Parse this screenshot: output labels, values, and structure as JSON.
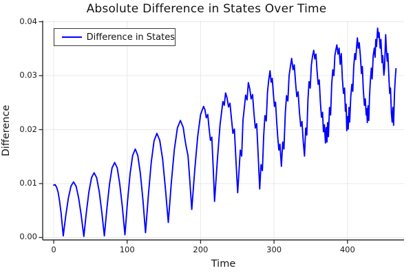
{
  "chart_data": {
    "type": "line",
    "title": "Absolute Difference in States Over Time",
    "xlabel": "Time",
    "ylabel": "Difference",
    "xlim": [
      -15,
      477
    ],
    "ylim": [
      -0.00045,
      0.0402
    ],
    "grid": true,
    "legend_position": "top-left",
    "xticks": {
      "values": [
        0,
        100,
        200,
        300,
        400
      ],
      "labels": [
        "0",
        "100",
        "200",
        "300",
        "400"
      ]
    },
    "yticks": {
      "values": [
        0,
        0.01,
        0.02,
        0.03,
        0.04
      ],
      "labels": [
        "0.00",
        "0.01",
        "0.02",
        "0.03",
        "0.04"
      ]
    },
    "colors": {
      "line": "#0000ff",
      "grid": "#e8e8e8",
      "axis": "#2b2b2b",
      "tick_text": "#1a1a1a"
    },
    "series": [
      {
        "name": "Difference in States",
        "points": [
          [
            0,
            0.0097
          ],
          [
            2,
            0.0098
          ],
          [
            4,
            0.0093
          ],
          [
            6,
            0.0084
          ],
          [
            8,
            0.0068
          ],
          [
            10,
            0.0046
          ],
          [
            12,
            0.0018
          ],
          [
            13,
            0.0003
          ],
          [
            16.5,
            0.0041
          ],
          [
            20,
            0.0073
          ],
          [
            23.5,
            0.0095
          ],
          [
            27,
            0.0103
          ],
          [
            30.5,
            0.0095
          ],
          [
            34,
            0.0073
          ],
          [
            37.5,
            0.0041
          ],
          [
            41,
            0.0002
          ],
          [
            44.5,
            0.0047
          ],
          [
            48,
            0.0085
          ],
          [
            51.5,
            0.0111
          ],
          [
            55,
            0.012
          ],
          [
            58.5,
            0.0111
          ],
          [
            62,
            0.0085
          ],
          [
            65.5,
            0.0047
          ],
          [
            69,
            0.0003
          ],
          [
            72.5,
            0.0055
          ],
          [
            76,
            0.0099
          ],
          [
            79.5,
            0.0129
          ],
          [
            83,
            0.0139
          ],
          [
            86.5,
            0.0129
          ],
          [
            90,
            0.0099
          ],
          [
            93.5,
            0.0056
          ],
          [
            97,
            0.0005
          ],
          [
            100.5,
            0.0066
          ],
          [
            104,
            0.0118
          ],
          [
            107.5,
            0.0152
          ],
          [
            111,
            0.0164
          ],
          [
            114.5,
            0.0152
          ],
          [
            118,
            0.0119
          ],
          [
            121.5,
            0.0069
          ],
          [
            125,
            0.0009
          ],
          [
            128.9,
            0.0079
          ],
          [
            132.8,
            0.0139
          ],
          [
            136.6,
            0.0179
          ],
          [
            140.5,
            0.0193
          ],
          [
            144.4,
            0.018
          ],
          [
            148.3,
            0.0145
          ],
          [
            152.1,
            0.0091
          ],
          [
            156,
            0.0028
          ],
          [
            160.1,
            0.01
          ],
          [
            164.2,
            0.0162
          ],
          [
            168.4,
            0.0203
          ],
          [
            172.5,
            0.0217
          ],
          [
            176.4,
            0.0204
          ],
          [
            178.3,
            0.0185
          ],
          [
            180.3,
            0.0169
          ],
          [
            182.8,
            0.0152
          ],
          [
            184.9,
            0.0114
          ],
          [
            188,
            0.0052
          ],
          [
            192,
            0.0125
          ],
          [
            196,
            0.0187
          ],
          [
            200,
            0.0228
          ],
          [
            204,
            0.0243
          ],
          [
            205.9,
            0.0237
          ],
          [
            207.8,
            0.0222
          ],
          [
            209.7,
            0.0228
          ],
          [
            211.5,
            0.0203
          ],
          [
            213.4,
            0.018
          ],
          [
            215.3,
            0.0186
          ],
          [
            217.2,
            0.0128
          ],
          [
            219,
            0.0067
          ],
          [
            222.8,
            0.0144
          ],
          [
            226.5,
            0.0209
          ],
          [
            230.3,
            0.0252
          ],
          [
            232.2,
            0.0245
          ],
          [
            234,
            0.0268
          ],
          [
            236,
            0.0259
          ],
          [
            238,
            0.0242
          ],
          [
            240,
            0.0249
          ],
          [
            242,
            0.0221
          ],
          [
            244,
            0.0193
          ],
          [
            246,
            0.0201
          ],
          [
            248,
            0.0148
          ],
          [
            250.5,
            0.0083
          ],
          [
            254.1,
            0.0162
          ],
          [
            255.9,
            0.0151
          ],
          [
            257.7,
            0.0217
          ],
          [
            261.4,
            0.0264
          ],
          [
            263.2,
            0.0255
          ],
          [
            265,
            0.0287
          ],
          [
            266.9,
            0.0276
          ],
          [
            268.8,
            0.0257
          ],
          [
            270.7,
            0.0265
          ],
          [
            272.6,
            0.0231
          ],
          [
            274.5,
            0.0203
          ],
          [
            276.4,
            0.0211
          ],
          [
            278.4,
            0.0152
          ],
          [
            280.5,
            0.009
          ],
          [
            282.3,
            0.0135
          ],
          [
            284.1,
            0.0124
          ],
          [
            285.9,
            0.0189
          ],
          [
            287.6,
            0.0226
          ],
          [
            289.4,
            0.0216
          ],
          [
            291.1,
            0.0269
          ],
          [
            292.8,
            0.0292
          ],
          [
            294.5,
            0.0309
          ],
          [
            296,
            0.0288
          ],
          [
            297.5,
            0.0295
          ],
          [
            299,
            0.0267
          ],
          [
            300.5,
            0.0243
          ],
          [
            302,
            0.0251
          ],
          [
            303.5,
            0.0216
          ],
          [
            305,
            0.0186
          ],
          [
            306.5,
            0.0162
          ],
          [
            308,
            0.0173
          ],
          [
            310,
            0.0132
          ],
          [
            311.8,
            0.0177
          ],
          [
            313.5,
            0.0164
          ],
          [
            315.3,
            0.0231
          ],
          [
            317,
            0.0263
          ],
          [
            318.8,
            0.0253
          ],
          [
            320.5,
            0.03
          ],
          [
            322.3,
            0.0317
          ],
          [
            324,
            0.0332
          ],
          [
            325.8,
            0.0311
          ],
          [
            327.5,
            0.032
          ],
          [
            329.3,
            0.0287
          ],
          [
            331,
            0.0261
          ],
          [
            332.8,
            0.027
          ],
          [
            334.5,
            0.0234
          ],
          [
            336.3,
            0.0206
          ],
          [
            338,
            0.0215
          ],
          [
            339.8,
            0.0177
          ],
          [
            341.5,
            0.0151
          ],
          [
            343.1,
            0.0203
          ],
          [
            344.6,
            0.019
          ],
          [
            346.2,
            0.0256
          ],
          [
            347.7,
            0.0289
          ],
          [
            349.3,
            0.0277
          ],
          [
            350.8,
            0.0319
          ],
          [
            352.4,
            0.0336
          ],
          [
            354,
            0.0347
          ],
          [
            355.5,
            0.0331
          ],
          [
            357,
            0.034
          ],
          [
            358.5,
            0.0309
          ],
          [
            360,
            0.0284
          ],
          [
            361.5,
            0.0292
          ],
          [
            363,
            0.0252
          ],
          [
            364.5,
            0.0223
          ],
          [
            366,
            0.0232
          ],
          [
            367.3,
            0.0196
          ],
          [
            368.6,
            0.0209
          ],
          [
            370,
            0.0175
          ],
          [
            371,
            0.0204
          ],
          [
            372,
            0.0177
          ],
          [
            373,
            0.0213
          ],
          [
            374,
            0.0187
          ],
          [
            375.5,
            0.0241
          ],
          [
            377,
            0.0227
          ],
          [
            378.5,
            0.0284
          ],
          [
            380,
            0.0311
          ],
          [
            381.5,
            0.03
          ],
          [
            382.8,
            0.0337
          ],
          [
            384.1,
            0.0348
          ],
          [
            385.5,
            0.0357
          ],
          [
            387,
            0.034
          ],
          [
            388.5,
            0.0351
          ],
          [
            390,
            0.0321
          ],
          [
            391.5,
            0.0341
          ],
          [
            393,
            0.0294
          ],
          [
            394.5,
            0.0267
          ],
          [
            396,
            0.0277
          ],
          [
            397.2,
            0.0234
          ],
          [
            398.1,
            0.0247
          ],
          [
            399,
            0.0198
          ],
          [
            400,
            0.0224
          ],
          [
            401,
            0.0201
          ],
          [
            402,
            0.0241
          ],
          [
            403,
            0.0214
          ],
          [
            404.5,
            0.0261
          ],
          [
            406,
            0.0284
          ],
          [
            407.2,
            0.0271
          ],
          [
            408.5,
            0.0317
          ],
          [
            410,
            0.0341
          ],
          [
            411.2,
            0.033
          ],
          [
            412.3,
            0.0352
          ],
          [
            413.5,
            0.037
          ],
          [
            414.7,
            0.0351
          ],
          [
            416,
            0.0361
          ],
          [
            417.5,
            0.0337
          ],
          [
            419,
            0.0304
          ],
          [
            420.2,
            0.0317
          ],
          [
            421.5,
            0.0274
          ],
          [
            423,
            0.0245
          ],
          [
            424.2,
            0.0257
          ],
          [
            425.5,
            0.0227
          ],
          [
            426.2,
            0.0239
          ],
          [
            427,
            0.0213
          ],
          [
            428,
            0.0244
          ],
          [
            429,
            0.0217
          ],
          [
            430,
            0.0261
          ],
          [
            431,
            0.0287
          ],
          [
            432.5,
            0.0314
          ],
          [
            433.5,
            0.0294
          ],
          [
            435,
            0.0337
          ],
          [
            436.5,
            0.0351
          ],
          [
            437.5,
            0.0334
          ],
          [
            438.5,
            0.0367
          ],
          [
            439.5,
            0.0354
          ],
          [
            441,
            0.0388
          ],
          [
            442,
            0.0371
          ],
          [
            443,
            0.038
          ],
          [
            444.5,
            0.0351
          ],
          [
            445.5,
            0.0367
          ],
          [
            447,
            0.0324
          ],
          [
            448,
            0.0337
          ],
          [
            449.5,
            0.0301
          ],
          [
            450.5,
            0.0314
          ],
          [
            452,
            0.0376
          ],
          [
            453,
            0.0347
          ],
          [
            454,
            0.0327
          ],
          [
            455,
            0.0341
          ],
          [
            456.5,
            0.0294
          ],
          [
            457.5,
            0.0267
          ],
          [
            458.5,
            0.0277
          ],
          [
            459.8,
            0.0231
          ],
          [
            460.8,
            0.0214
          ],
          [
            461.8,
            0.0241
          ],
          [
            462.8,
            0.0208
          ],
          [
            464,
            0.0267
          ],
          [
            465,
            0.0294
          ],
          [
            466,
            0.0313
          ]
        ]
      }
    ]
  }
}
